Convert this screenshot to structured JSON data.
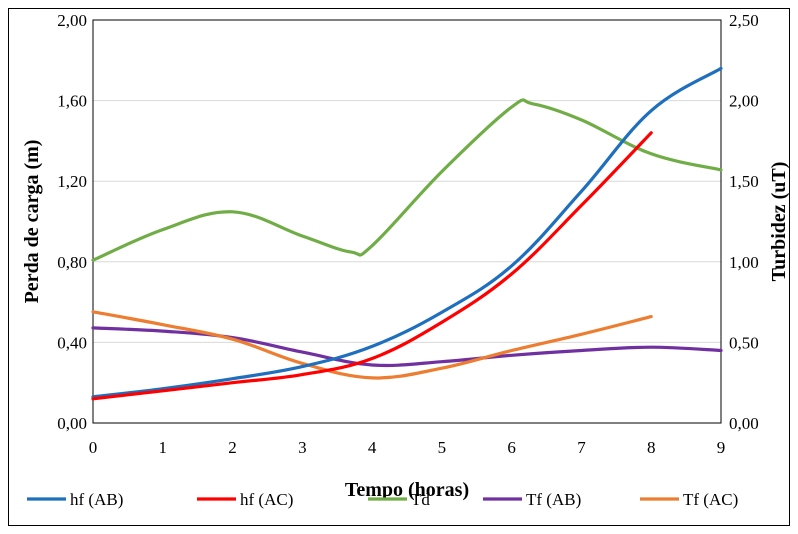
{
  "chart_data": {
    "type": "line",
    "title": "",
    "xlabel": "Tempo (horas)",
    "ylabel": "Perda de carga (m)",
    "y2label": "Turbidez (uT)",
    "xlim": [
      0,
      9
    ],
    "ylim": [
      0,
      2.0
    ],
    "y2lim": [
      0,
      2.5
    ],
    "x_ticks": [
      "0",
      "1",
      "2",
      "3",
      "4",
      "5",
      "6",
      "7",
      "8",
      "9"
    ],
    "y_ticks": [
      "0,00",
      "0,40",
      "0,80",
      "1,20",
      "1,60",
      "2,00"
    ],
    "y2_ticks": [
      "0,00",
      "0,50",
      "1,00",
      "1,50",
      "2,00",
      "2,50"
    ],
    "grid": true,
    "legend_position": "bottom",
    "series": [
      {
        "name": "hf (AB)",
        "axis": "left",
        "color": "#1f6fbf",
        "x": [
          0,
          1,
          2,
          3,
          4,
          5,
          6,
          7,
          8,
          9
        ],
        "values": [
          0.13,
          0.17,
          0.22,
          0.28,
          0.38,
          0.55,
          0.78,
          1.15,
          1.55,
          1.76
        ]
      },
      {
        "name": "hf (AC)",
        "axis": "left",
        "color": "#ff0000",
        "x": [
          0,
          1,
          2,
          3,
          4,
          5,
          6,
          7,
          8
        ],
        "values": [
          0.12,
          0.16,
          0.2,
          0.24,
          0.32,
          0.5,
          0.74,
          1.08,
          1.44
        ]
      },
      {
        "name": "Td",
        "axis": "right",
        "color": "#70ad47",
        "x": [
          0,
          1,
          2,
          3,
          3.7,
          4,
          5,
          6,
          6.3,
          7,
          8,
          9
        ],
        "values": [
          1.01,
          1.2,
          1.31,
          1.16,
          1.06,
          1.1,
          1.56,
          1.96,
          1.98,
          1.88,
          1.67,
          1.57
        ]
      },
      {
        "name": "Tf (AB)",
        "axis": "right",
        "color": "#7030a0",
        "x": [
          0,
          1,
          2,
          3,
          4,
          5,
          6,
          7,
          8,
          9
        ],
        "values": [
          0.59,
          0.57,
          0.53,
          0.44,
          0.36,
          0.38,
          0.42,
          0.45,
          0.47,
          0.45
        ]
      },
      {
        "name": "Tf (AC)",
        "axis": "right",
        "color": "#ed7d31",
        "x": [
          0,
          1,
          2,
          3,
          4,
          5,
          6,
          7,
          8
        ],
        "values": [
          0.69,
          0.61,
          0.52,
          0.37,
          0.28,
          0.34,
          0.45,
          0.55,
          0.66
        ]
      }
    ]
  }
}
